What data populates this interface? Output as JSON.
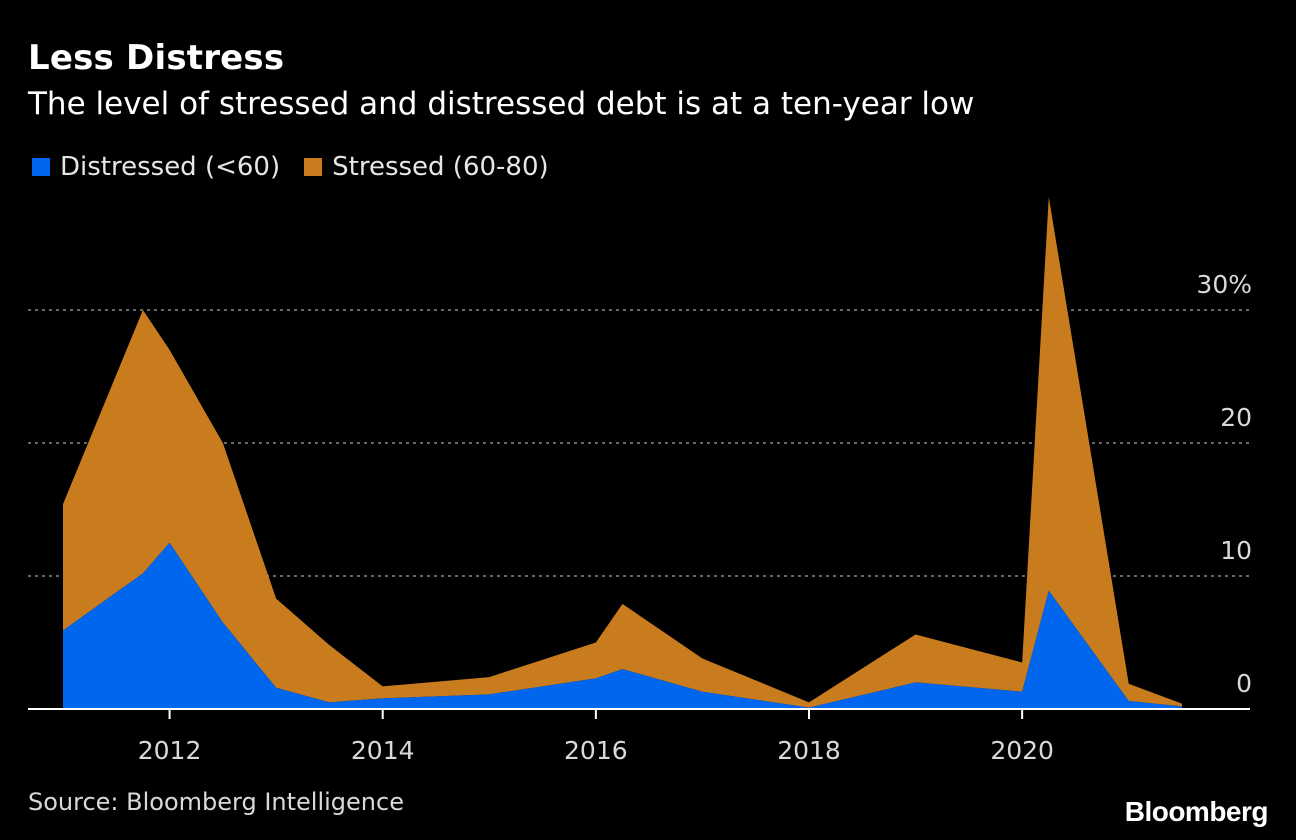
{
  "header": {
    "title": "Less Distress",
    "subtitle": "The level of stressed and distressed debt is at a ten-year low"
  },
  "legend": {
    "items": [
      {
        "label": "Distressed (<60)",
        "color": "#0066ee"
      },
      {
        "label": "Stressed (60-80)",
        "color": "#c97c1e"
      }
    ]
  },
  "footer": {
    "source": "Source: Bloomberg Intelligence",
    "brand": "Bloomberg"
  },
  "chart_data": {
    "type": "area",
    "stacked": true,
    "x_is_year_fraction": true,
    "x": [
      2011.0,
      2011.75,
      2012.0,
      2012.5,
      2013.0,
      2013.5,
      2014.0,
      2015.0,
      2016.0,
      2016.25,
      2017.0,
      2018.0,
      2019.0,
      2020.0,
      2020.25,
      2021.0,
      2021.5
    ],
    "series": [
      {
        "name": "Distressed (<60)",
        "color": "#0066ee",
        "values": [
          5.9,
          10.2,
          12.5,
          6.5,
          1.6,
          0.5,
          0.8,
          1.1,
          2.3,
          3.0,
          1.3,
          0.1,
          2.0,
          1.3,
          8.9,
          0.6,
          0.2
        ]
      },
      {
        "name": "Stressed (60-80)",
        "color": "#c97c1e",
        "values": [
          9.5,
          19.8,
          14.5,
          13.5,
          6.7,
          4.3,
          0.9,
          1.3,
          2.7,
          4.9,
          2.5,
          0.4,
          3.6,
          2.2,
          29.6,
          1.3,
          0.2
        ]
      }
    ],
    "ylim": [
      0,
      40
    ],
    "y_ticks": [
      {
        "value": 0,
        "label": "0"
      },
      {
        "value": 10,
        "label": "10"
      },
      {
        "value": 20,
        "label": "20"
      },
      {
        "value": 30,
        "label": "30%"
      }
    ],
    "x_ticks": [
      {
        "value": 2012,
        "label": "2012"
      },
      {
        "value": 2014,
        "label": "2014"
      },
      {
        "value": 2016,
        "label": "2016"
      },
      {
        "value": 2018,
        "label": "2018"
      },
      {
        "value": 2020,
        "label": "2020"
      }
    ],
    "grid": "horizontal-dotted",
    "y_axis_side": "right",
    "legend_position": "top-left"
  }
}
